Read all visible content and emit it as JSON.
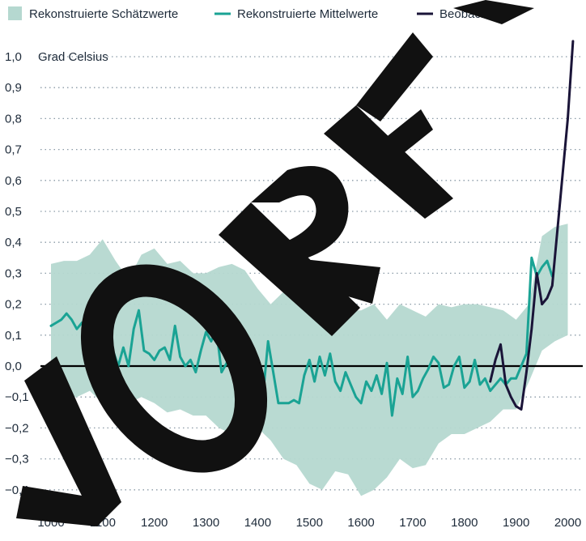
{
  "chart_data": {
    "type": "line",
    "ylabel": "Grad Celsius",
    "ylim": [
      -0.45,
      1.05
    ],
    "xlim": [
      1000,
      2015
    ],
    "x_ticks": [
      1000,
      1100,
      1200,
      1300,
      1400,
      1500,
      1600,
      1700,
      1800,
      1900,
      2000
    ],
    "x_tick_labels": [
      "1000",
      "1100",
      "1200",
      "1300",
      "1400",
      "1500",
      "1600",
      "1700",
      "1800",
      "1900",
      "2000"
    ],
    "y_ticks": [
      1.0,
      0.9,
      0.8,
      0.7,
      0.6,
      0.5,
      0.4,
      0.3,
      0.2,
      0.1,
      0.0,
      -0.1,
      -0.2,
      -0.3,
      -0.4
    ],
    "y_tick_labels": [
      "1,0",
      "0,9",
      "0,8",
      "0,7",
      "0,6",
      "0,5",
      "0,4",
      "0,3",
      "0,2",
      "0,1",
      "0,0",
      "−0,1",
      "−0,2",
      "−0,3",
      "−0,4"
    ],
    "grid": "horizontal dotted",
    "legend_placement": "top",
    "legend": [
      {
        "label": "Rekonstruierte Schätzwerte",
        "kind": "band",
        "color": "#b5d8d0"
      },
      {
        "label": "Rekonstruierte Mittelwerte",
        "kind": "line",
        "color": "#1aa394"
      },
      {
        "label": "Beobachtet",
        "kind": "line",
        "color": "#1a1438"
      }
    ],
    "series": [
      {
        "name": "Rekonstruierte Schätzwerte",
        "style": "band",
        "color": "#b5d8d0",
        "x": [
          1000,
          1025,
          1050,
          1075,
          1100,
          1125,
          1150,
          1175,
          1200,
          1225,
          1250,
          1275,
          1300,
          1325,
          1350,
          1375,
          1400,
          1425,
          1450,
          1475,
          1500,
          1525,
          1550,
          1575,
          1600,
          1625,
          1650,
          1675,
          1700,
          1725,
          1750,
          1775,
          1800,
          1825,
          1850,
          1875,
          1900,
          1925,
          1950,
          1975,
          2000
        ],
        "lower": [
          -0.12,
          -0.1,
          -0.1,
          -0.08,
          -0.12,
          -0.15,
          -0.12,
          -0.1,
          -0.12,
          -0.15,
          -0.14,
          -0.16,
          -0.16,
          -0.2,
          -0.22,
          -0.22,
          -0.2,
          -0.24,
          -0.3,
          -0.32,
          -0.38,
          -0.4,
          -0.34,
          -0.35,
          -0.42,
          -0.4,
          -0.36,
          -0.3,
          -0.33,
          -0.32,
          -0.25,
          -0.22,
          -0.22,
          -0.2,
          -0.18,
          -0.14,
          -0.14,
          -0.05,
          0.05,
          0.08,
          0.1
        ],
        "upper": [
          0.33,
          0.34,
          0.34,
          0.36,
          0.41,
          0.34,
          0.28,
          0.36,
          0.38,
          0.33,
          0.34,
          0.3,
          0.3,
          0.32,
          0.33,
          0.31,
          0.25,
          0.2,
          0.24,
          0.27,
          0.2,
          0.22,
          0.24,
          0.18,
          0.18,
          0.2,
          0.15,
          0.2,
          0.18,
          0.16,
          0.2,
          0.19,
          0.2,
          0.2,
          0.19,
          0.18,
          0.15,
          0.2,
          0.42,
          0.45,
          0.46
        ]
      },
      {
        "name": "Rekonstruierte Mittelwerte",
        "style": "line",
        "color": "#1aa394",
        "x": [
          1000,
          1010,
          1020,
          1030,
          1040,
          1050,
          1060,
          1070,
          1080,
          1090,
          1100,
          1110,
          1120,
          1130,
          1140,
          1150,
          1160,
          1170,
          1180,
          1190,
          1200,
          1210,
          1220,
          1230,
          1240,
          1250,
          1260,
          1270,
          1280,
          1290,
          1300,
          1310,
          1320,
          1330,
          1340,
          1350,
          1360,
          1370,
          1380,
          1390,
          1400,
          1410,
          1420,
          1430,
          1440,
          1450,
          1460,
          1470,
          1480,
          1490,
          1500,
          1510,
          1520,
          1530,
          1540,
          1550,
          1560,
          1570,
          1580,
          1590,
          1600,
          1610,
          1620,
          1630,
          1640,
          1650,
          1660,
          1670,
          1680,
          1690,
          1700,
          1710,
          1720,
          1730,
          1740,
          1750,
          1760,
          1770,
          1780,
          1790,
          1800,
          1810,
          1820,
          1830,
          1840,
          1850,
          1860,
          1870,
          1880,
          1890,
          1900,
          1910,
          1920,
          1930,
          1940,
          1950,
          1960,
          1970,
          1980,
          1990,
          2000
        ],
        "y": [
          0.13,
          0.14,
          0.15,
          0.17,
          0.15,
          0.12,
          0.14,
          0.12,
          0.1,
          0.2,
          0.02,
          0.04,
          0.05,
          0.0,
          0.06,
          0.0,
          0.12,
          0.18,
          0.05,
          0.04,
          0.02,
          0.05,
          0.06,
          0.02,
          0.13,
          0.03,
          0.0,
          0.02,
          -0.02,
          0.05,
          0.11,
          0.08,
          0.12,
          -0.02,
          0.01,
          0.07,
          0.08,
          -0.05,
          0.09,
          0.0,
          -0.12,
          -0.1,
          0.08,
          -0.02,
          -0.12,
          -0.12,
          -0.12,
          -0.11,
          -0.12,
          -0.03,
          0.02,
          -0.05,
          0.03,
          -0.03,
          0.04,
          -0.05,
          -0.08,
          -0.02,
          -0.06,
          -0.1,
          -0.12,
          -0.05,
          -0.08,
          -0.03,
          -0.09,
          0.01,
          -0.16,
          -0.04,
          -0.09,
          0.03,
          -0.1,
          -0.08,
          -0.04,
          -0.01,
          0.03,
          0.01,
          -0.07,
          -0.06,
          0.0,
          0.03,
          -0.07,
          -0.05,
          0.02,
          -0.06,
          -0.04,
          -0.08,
          -0.06,
          -0.04,
          -0.06,
          -0.04,
          -0.04,
          0.0,
          0.04,
          0.35,
          0.29,
          0.32,
          0.34,
          0.29,
          null,
          null,
          null
        ]
      },
      {
        "name": "Beobachtet",
        "style": "line",
        "color": "#1a1438",
        "x": [
          1850,
          1860,
          1870,
          1880,
          1890,
          1900,
          1910,
          1920,
          1930,
          1940,
          1950,
          1960,
          1970,
          1980,
          1990,
          2000,
          2010
        ],
        "y": [
          -0.05,
          0.02,
          0.07,
          -0.06,
          -0.1,
          -0.13,
          -0.14,
          -0.02,
          0.12,
          0.3,
          0.2,
          0.22,
          0.26,
          0.44,
          0.62,
          0.8,
          1.05
        ]
      }
    ]
  }
}
